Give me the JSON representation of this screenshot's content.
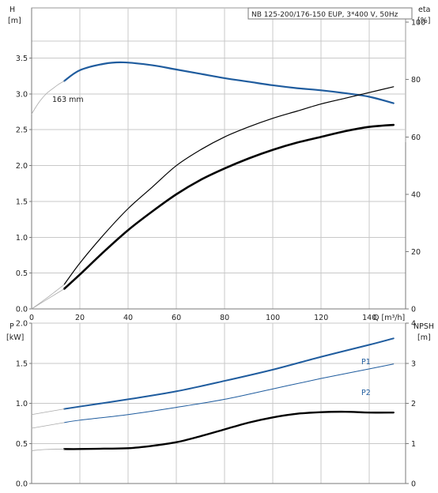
{
  "title": "NB 125-200/176-150 EUP, 3*400 V, 50Hz",
  "colors": {
    "blue": "#1f5c9e",
    "black": "#000000",
    "grid": "#c8c8c8"
  },
  "chart_data": [
    {
      "type": "line",
      "name": "upper",
      "xlabel": "Q [m³/h]",
      "ylabel_left": [
        "H",
        "[m]"
      ],
      "ylabel_right": [
        "eta",
        "[%]"
      ],
      "xlim": [
        0,
        155
      ],
      "ylim": [
        0,
        4.2
      ],
      "ylim_right": [
        0,
        105
      ],
      "xticks": [
        0,
        20,
        40,
        60,
        80,
        100,
        120,
        140
      ],
      "yticks": [
        0.0,
        0.5,
        1.0,
        1.5,
        2.0,
        2.5,
        3.0,
        3.5
      ],
      "yticks_right": [
        0,
        20,
        40,
        60,
        80,
        100
      ],
      "grid": true,
      "annotation": "163 mm",
      "series": [
        {
          "key": "H",
          "axis": "left",
          "color": "#1f5c9e",
          "width": 2.2,
          "x": [
            13.5,
            20,
            30,
            38,
            50,
            60,
            70,
            80,
            90,
            100,
            110,
            120,
            130,
            140,
            150
          ],
          "y": [
            3.18,
            3.33,
            3.42,
            3.44,
            3.4,
            3.34,
            3.28,
            3.22,
            3.17,
            3.12,
            3.08,
            3.05,
            3.01,
            2.96,
            2.87
          ]
        },
        {
          "key": "H_ext",
          "axis": "left",
          "color": "#aaaaaa",
          "width": 0.8,
          "x": [
            0,
            3,
            6,
            9,
            11,
            13.5
          ],
          "y": [
            2.72,
            2.88,
            3.0,
            3.08,
            3.13,
            3.18
          ]
        },
        {
          "key": "eta_upper",
          "axis": "right",
          "color": "#000000",
          "width": 1.2,
          "x": [
            13.5,
            20,
            30,
            40,
            50,
            60,
            70,
            80,
            90,
            100,
            110,
            120,
            130,
            140,
            150
          ],
          "y": [
            8.5,
            16,
            26,
            35,
            42.5,
            50,
            55.5,
            60,
            63.5,
            66.5,
            69,
            71.5,
            73.5,
            75.5,
            77.5
          ]
        },
        {
          "key": "eta_lower",
          "axis": "right",
          "color": "#000000",
          "width": 2.6,
          "x": [
            13.5,
            20,
            30,
            40,
            50,
            60,
            70,
            80,
            90,
            100,
            110,
            120,
            130,
            140,
            150
          ],
          "y": [
            7.0,
            12,
            20,
            27.5,
            34,
            40,
            45,
            49,
            52.5,
            55.5,
            58,
            60,
            62,
            63.5,
            64.2
          ]
        },
        {
          "key": "eta_ext_a",
          "axis": "right",
          "color": "#aaaaaa",
          "width": 0.8,
          "x": [
            0,
            5,
            10,
            13.5
          ],
          "y": [
            0,
            3,
            6.2,
            8.5
          ]
        },
        {
          "key": "eta_ext_b",
          "axis": "right",
          "color": "#aaaaaa",
          "width": 0.8,
          "x": [
            0,
            5,
            10,
            13.5
          ],
          "y": [
            0,
            2.6,
            5.2,
            7.0
          ]
        }
      ]
    },
    {
      "type": "line",
      "name": "lower",
      "ylabel_left": [
        "P",
        "[kW]"
      ],
      "ylabel_right": [
        "NPSH",
        "[m]"
      ],
      "xlim": [
        0,
        155
      ],
      "ylim": [
        0,
        2.0
      ],
      "ylim_right": [
        0,
        4.0
      ],
      "yticks": [
        0.0,
        0.5,
        1.0,
        1.5,
        2.0
      ],
      "yticks_right": [
        0,
        1,
        2,
        3,
        4
      ],
      "grid": true,
      "series": [
        {
          "key": "P1",
          "name": "P1",
          "axis": "left",
          "color": "#1f5c9e",
          "width": 2.0,
          "x": [
            13.5,
            20,
            40,
            60,
            80,
            100,
            120,
            140,
            150
          ],
          "y": [
            0.93,
            0.96,
            1.05,
            1.15,
            1.28,
            1.42,
            1.58,
            1.73,
            1.81
          ]
        },
        {
          "key": "P2",
          "name": "P2",
          "axis": "left",
          "color": "#1f5c9e",
          "width": 1.0,
          "x": [
            13.5,
            20,
            40,
            60,
            80,
            100,
            120,
            140,
            150
          ],
          "y": [
            0.76,
            0.79,
            0.86,
            0.95,
            1.05,
            1.18,
            1.31,
            1.43,
            1.49
          ]
        },
        {
          "key": "P1_ext",
          "axis": "left",
          "color": "#aaaaaa",
          "width": 0.8,
          "x": [
            0,
            13.5
          ],
          "y": [
            0.86,
            0.93
          ]
        },
        {
          "key": "P2_ext",
          "axis": "left",
          "color": "#aaaaaa",
          "width": 0.8,
          "x": [
            0,
            13.5
          ],
          "y": [
            0.69,
            0.76
          ]
        },
        {
          "key": "NPSH",
          "axis": "right",
          "color": "#000000",
          "width": 2.4,
          "x": [
            13.5,
            20,
            30,
            40,
            50,
            60,
            70,
            80,
            90,
            100,
            110,
            120,
            130,
            140,
            150
          ],
          "y": [
            0.86,
            0.86,
            0.87,
            0.88,
            0.94,
            1.03,
            1.18,
            1.35,
            1.52,
            1.65,
            1.74,
            1.78,
            1.79,
            1.77,
            1.77
          ]
        },
        {
          "key": "NPSH_ext",
          "axis": "right",
          "color": "#aaaaaa",
          "width": 0.8,
          "x": [
            0,
            6,
            13.5
          ],
          "y": [
            0.82,
            0.85,
            0.86
          ]
        }
      ]
    }
  ]
}
